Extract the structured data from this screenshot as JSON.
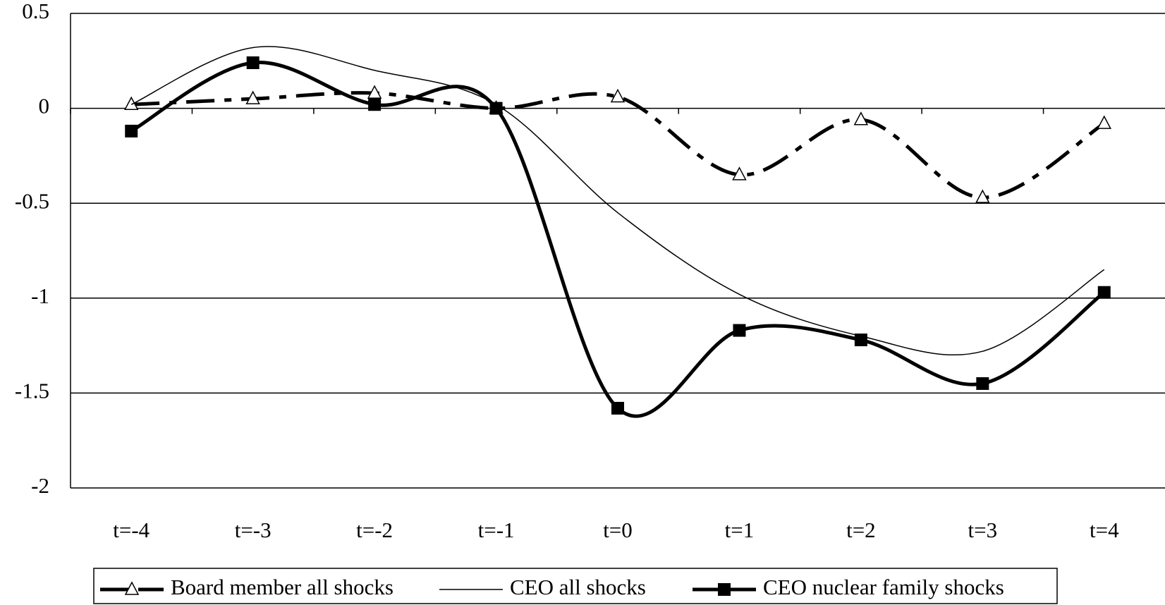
{
  "chart_data": {
    "type": "line",
    "categories": [
      "t=-4",
      "t=-3",
      "t=-2",
      "t=-1",
      "t=0",
      "t=1",
      "t=2",
      "t=3",
      "t=4"
    ],
    "series": [
      {
        "name": "Board member all shocks",
        "color": "#000000",
        "values": [
          0.02,
          0.05,
          0.08,
          0.0,
          0.06,
          -0.35,
          -0.06,
          -0.47,
          -0.08
        ]
      },
      {
        "name": "CEO all shocks",
        "color": "#000000",
        "values": [
          0.02,
          0.32,
          0.2,
          0.02,
          -0.55,
          -0.98,
          -1.2,
          -1.28,
          -0.85
        ]
      },
      {
        "name": "CEO nuclear family shocks",
        "color": "#000000",
        "values": [
          -0.12,
          0.24,
          0.02,
          0.0,
          -1.58,
          -1.17,
          -1.22,
          -1.45,
          -0.97
        ]
      }
    ],
    "ylim": [
      -2,
      0.5
    ],
    "yticks": [
      -2,
      -1.5,
      -1,
      -0.5,
      0,
      0.5
    ],
    "grid": true,
    "legend": "bottom"
  }
}
